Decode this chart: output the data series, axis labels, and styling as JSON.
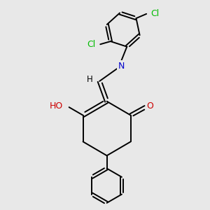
{
  "background_color": "#e8e8e8",
  "bond_color": "#000000",
  "atom_colors": {
    "Cl": "#00bb00",
    "N": "#0000cc",
    "O": "#cc0000",
    "H": "#000000"
  },
  "figsize": [
    3.0,
    3.0
  ],
  "dpi": 100
}
